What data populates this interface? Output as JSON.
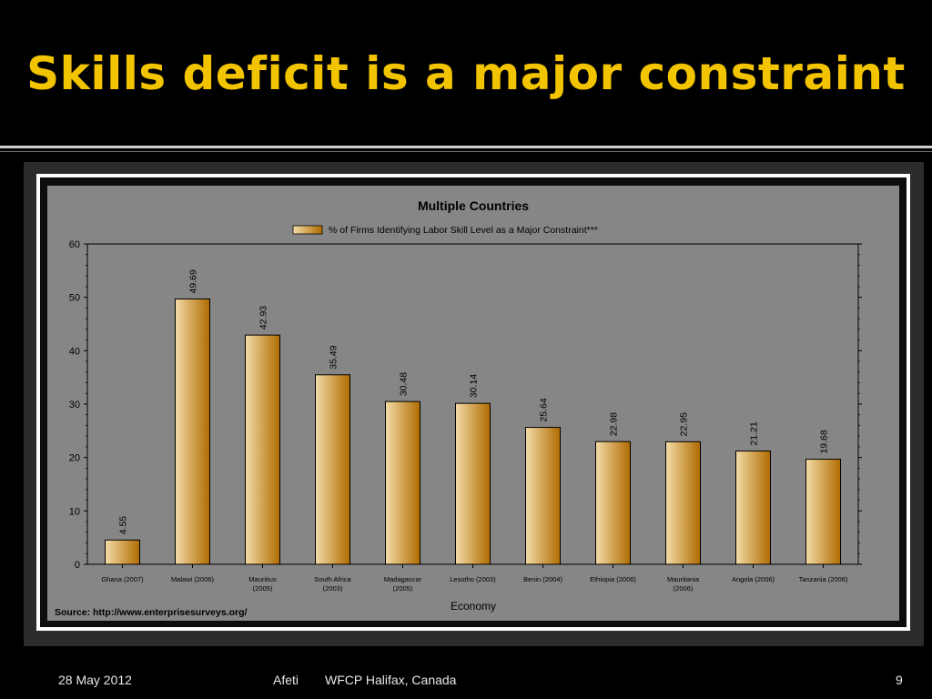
{
  "slide": {
    "title": "Skills deficit is a major constraint",
    "footer_date": "28 May 2012",
    "footer_author": "Afeti",
    "footer_event": "WFCP Halifax, Canada",
    "page_number": "9"
  },
  "colors": {
    "title": "#f2c400",
    "panel": "#868686",
    "bar_light": "#f3dca8",
    "bar_dark": "#b06b00"
  },
  "chart_data": {
    "type": "bar",
    "title": "Multiple Countries",
    "legend": "% of Firms Identifying Labor Skill Level as a Major Constraint***",
    "xlabel": "Economy",
    "ylabel": "",
    "ylim": [
      0,
      60
    ],
    "yticks": [
      0,
      10,
      20,
      30,
      40,
      50,
      60
    ],
    "source": "Source: http://www.enterprisesurveys.org/",
    "categories": [
      [
        "Ghana (2007)"
      ],
      [
        "Malawi (2006)"
      ],
      [
        "Mauritius",
        "(2005)"
      ],
      [
        "South Africa",
        "(2003)"
      ],
      [
        "Madagascar",
        "(2005)"
      ],
      [
        "Lesotho (2003)"
      ],
      [
        "Benin (2004)"
      ],
      [
        "Ethiopia (2006)"
      ],
      [
        "Mauritania",
        "(2006)"
      ],
      [
        "Angola (2006)"
      ],
      [
        "Tanzania (2006)"
      ]
    ],
    "values": [
      4.55,
      49.69,
      42.93,
      35.49,
      30.48,
      30.14,
      25.64,
      22.98,
      22.95,
      21.21,
      19.68
    ],
    "value_labels": [
      "4.55",
      "49.69",
      "42.93",
      "35.49",
      "30.48",
      "30.14",
      "25.64",
      "22.98",
      "22.95",
      "21.21",
      "19.68"
    ]
  }
}
